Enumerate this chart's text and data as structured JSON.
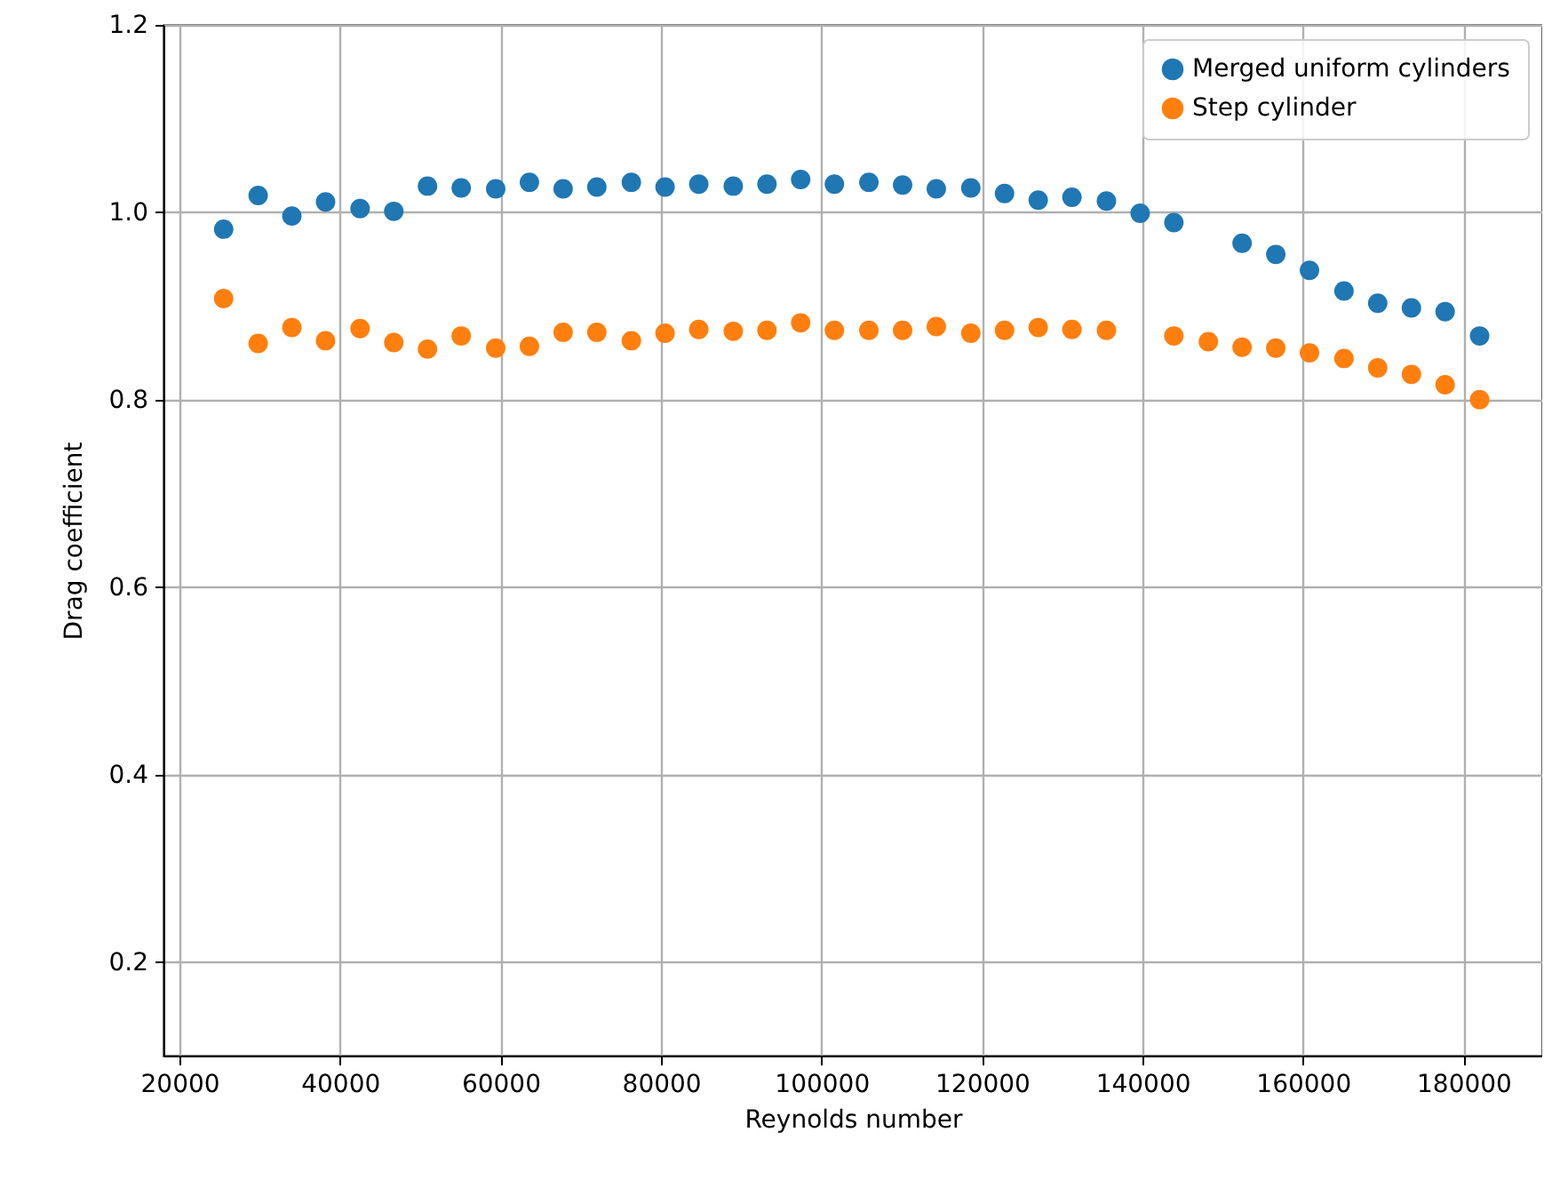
{
  "chart_data": {
    "type": "scatter",
    "xlabel": "Reynolds number",
    "ylabel": "Drag coefficient",
    "x": [
      25500,
      29800,
      34000,
      38200,
      42500,
      46700,
      50900,
      55100,
      59400,
      63600,
      67800,
      72000,
      76300,
      80500,
      84700,
      89000,
      93200,
      97400,
      101600,
      105900,
      110100,
      114300,
      118600,
      122800,
      127000,
      131200,
      135500,
      139700,
      143900,
      148200,
      152400,
      156600,
      160800,
      165100,
      169300,
      173500,
      177700,
      182000
    ],
    "series": [
      {
        "name": "Merged uniform cylinders",
        "color": "#1f77b4",
        "values": [
          0.982,
          1.018,
          0.996,
          1.011,
          1.004,
          1.001,
          1.028,
          1.026,
          1.025,
          1.032,
          1.025,
          1.027,
          1.032,
          1.027,
          1.03,
          1.028,
          1.03,
          1.035,
          1.03,
          1.032,
          1.029,
          1.025,
          1.026,
          1.02,
          1.013,
          1.016,
          1.012,
          0.999,
          0.989,
          null,
          0.967,
          0.955,
          0.938,
          0.916,
          0.903,
          0.898,
          0.894,
          0.868
        ]
      },
      {
        "name": "Step cylinder",
        "color": "#ff7f0e",
        "values": [
          0.908,
          0.86,
          0.877,
          0.863,
          0.876,
          0.861,
          0.854,
          0.868,
          0.855,
          0.857,
          0.872,
          0.872,
          0.863,
          0.871,
          0.875,
          0.873,
          0.874,
          0.882,
          0.874,
          0.874,
          0.874,
          0.878,
          0.871,
          0.874,
          0.877,
          0.875,
          0.874,
          null,
          0.868,
          0.862,
          0.856,
          0.855,
          0.85,
          0.844,
          0.834,
          0.827,
          0.816,
          0.8
        ]
      }
    ],
    "xlim": [
      18000,
      189800
    ],
    "xticks": [
      20000,
      40000,
      60000,
      80000,
      100000,
      120000,
      140000,
      160000,
      180000
    ],
    "ylim": [
      0.1,
      1.2
    ],
    "yticks": [
      0.2,
      0.4,
      0.6,
      0.8,
      {
        "value": 1.0,
        "label": "1.0"
      },
      1.2
    ],
    "grid": true,
    "legend": "top right",
    "marker": "circle"
  }
}
